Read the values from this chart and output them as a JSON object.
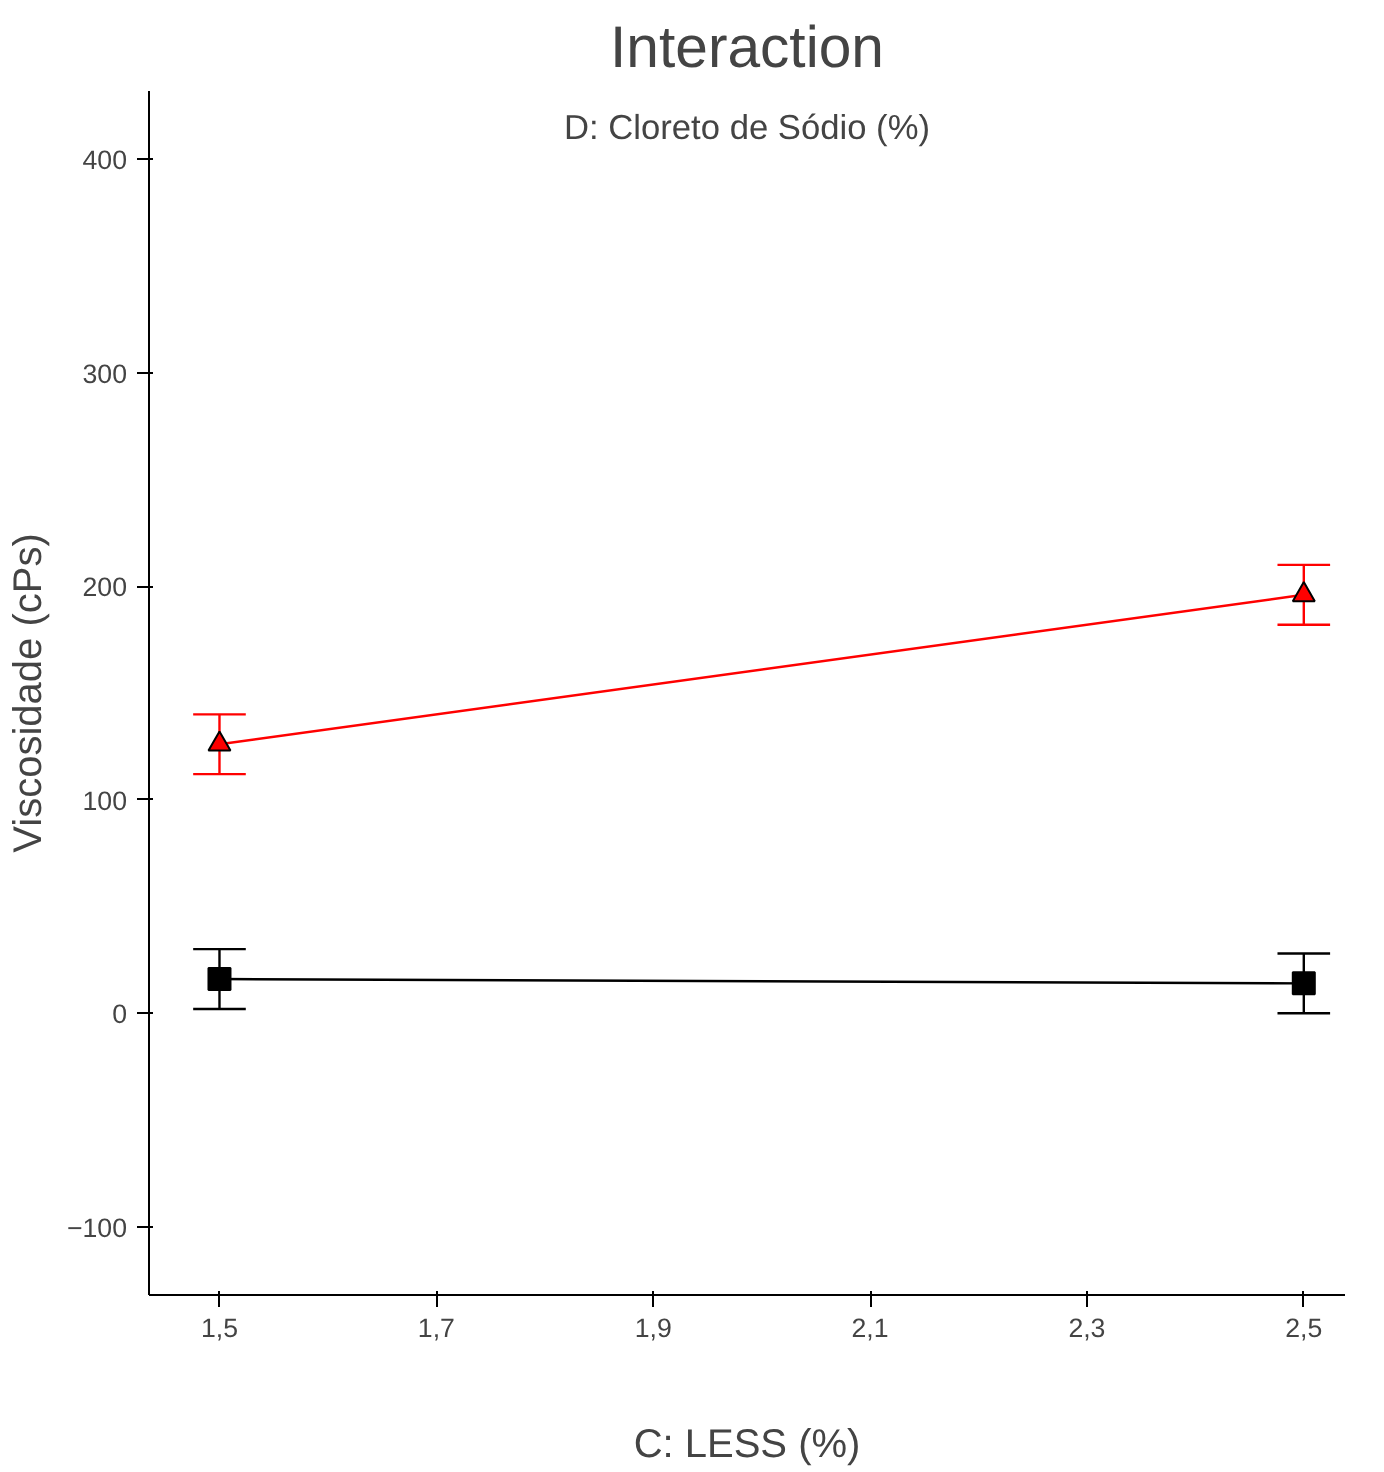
{
  "chart_data": {
    "type": "line",
    "title": "Interaction",
    "subtitle": "D: Cloreto de Sódio (%)",
    "xlabel": "C: LESS (%)",
    "ylabel": "Viscosidade (cPs)",
    "x": [
      1.5,
      2.5
    ],
    "series": [
      {
        "color": "#000000",
        "marker": "square",
        "values": [
          16,
          14
        ],
        "errors": [
          14,
          14
        ]
      },
      {
        "color": "#ff0000",
        "marker": "triangle",
        "values": [
          126,
          196
        ],
        "errors": [
          14,
          14
        ]
      }
    ],
    "xlim": [
      1.435,
      2.538
    ],
    "ylim": [
      -132,
      432
    ],
    "xticks": [
      {
        "value": 1.5,
        "label": "1,5"
      },
      {
        "value": 1.7,
        "label": "1,7"
      },
      {
        "value": 1.9,
        "label": "1,9"
      },
      {
        "value": 2.1,
        "label": "2,1"
      },
      {
        "value": 2.3,
        "label": "2,3"
      },
      {
        "value": 2.5,
        "label": "2,5"
      }
    ],
    "yticks": [
      -100,
      0,
      100,
      200,
      300,
      400
    ],
    "grid": false,
    "line_style": "solid"
  }
}
